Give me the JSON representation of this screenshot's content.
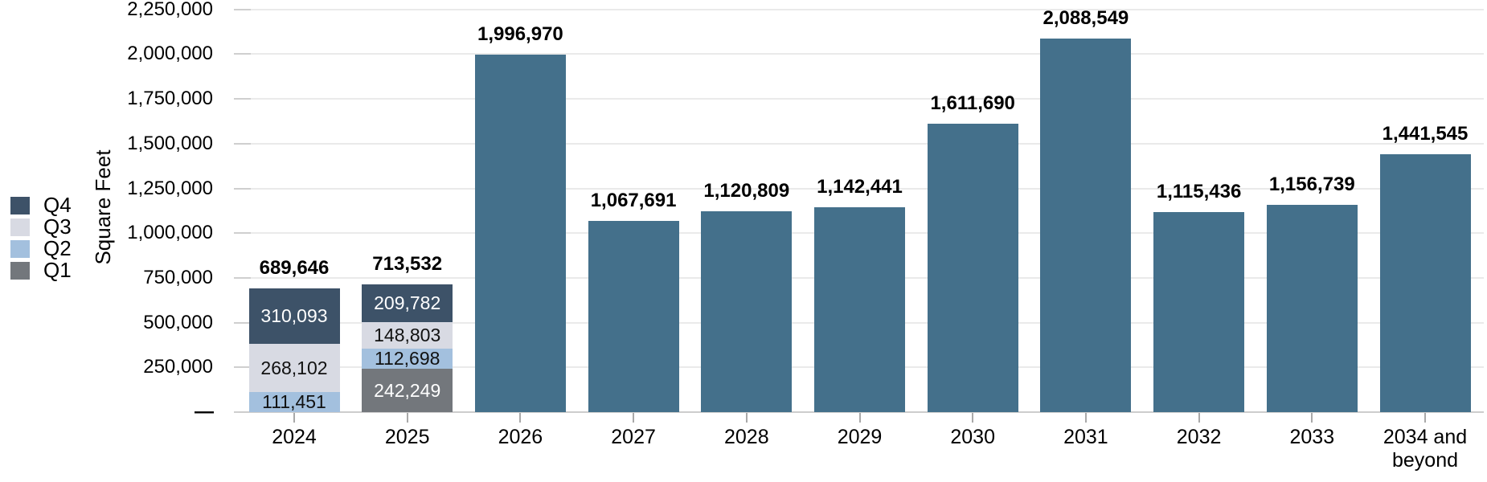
{
  "chart_data": {
    "type": "bar",
    "stacked": true,
    "title": "",
    "xlabel": "",
    "ylabel": "Square Feet",
    "ylim": [
      0,
      2250000
    ],
    "ytick_step": 250000,
    "grid": "horizontal",
    "legend_position": "left",
    "legend": [
      {
        "label": "Q4",
        "color": "#3D5268"
      },
      {
        "label": "Q3",
        "color": "#D8DAE3"
      },
      {
        "label": "Q2",
        "color": "#A3C0DE"
      },
      {
        "label": "Q1",
        "color": "#73777C"
      }
    ],
    "default_bar_color": "#44708B",
    "yticks": [
      {
        "value": 0,
        "label": "—"
      },
      {
        "value": 250000,
        "label": "250,000"
      },
      {
        "value": 500000,
        "label": "500,000"
      },
      {
        "value": 750000,
        "label": "750,000"
      },
      {
        "value": 1000000,
        "label": "1,000,000"
      },
      {
        "value": 1250000,
        "label": "1,250,000"
      },
      {
        "value": 1500000,
        "label": "1,500,000"
      },
      {
        "value": 1750000,
        "label": "1,750,000"
      },
      {
        "value": 2000000,
        "label": "2,000,000"
      },
      {
        "value": 2250000,
        "label": "2,250,000"
      }
    ],
    "categories": [
      "2024",
      "2025",
      "2026",
      "2027",
      "2028",
      "2029",
      "2030",
      "2031",
      "2032",
      "2033",
      "2034 and beyond"
    ],
    "stack_order": "bottom-to-top",
    "bars": [
      {
        "category": "2024",
        "total": 689646,
        "total_label": "689,646",
        "segments": [
          {
            "quarter": "Q2",
            "value": 111451,
            "label": "111,451",
            "color": "#A3C0DE",
            "text_color": "#111111"
          },
          {
            "quarter": "Q3",
            "value": 268102,
            "label": "268,102",
            "color": "#D8DAE3",
            "text_color": "#111111"
          },
          {
            "quarter": "Q4",
            "value": 310093,
            "label": "310,093",
            "color": "#3D5268",
            "text_color": "#FFFFFF"
          }
        ]
      },
      {
        "category": "2025",
        "total": 713532,
        "total_label": "713,532",
        "segments": [
          {
            "quarter": "Q1",
            "value": 242249,
            "label": "242,249",
            "color": "#73777C",
            "text_color": "#FFFFFF"
          },
          {
            "quarter": "Q2",
            "value": 112698,
            "label": "112,698",
            "color": "#A3C0DE",
            "text_color": "#111111"
          },
          {
            "quarter": "Q3",
            "value": 148803,
            "label": "148,803",
            "color": "#D8DAE3",
            "text_color": "#111111"
          },
          {
            "quarter": "Q4",
            "value": 209782,
            "label": "209,782",
            "color": "#3D5268",
            "text_color": "#FFFFFF"
          }
        ]
      },
      {
        "category": "2026",
        "total": 1996970,
        "total_label": "1,996,970",
        "segments": []
      },
      {
        "category": "2027",
        "total": 1067691,
        "total_label": "1,067,691",
        "segments": []
      },
      {
        "category": "2028",
        "total": 1120809,
        "total_label": "1,120,809",
        "segments": []
      },
      {
        "category": "2029",
        "total": 1142441,
        "total_label": "1,142,441",
        "segments": []
      },
      {
        "category": "2030",
        "total": 1611690,
        "total_label": "1,611,690",
        "segments": []
      },
      {
        "category": "2031",
        "total": 2088549,
        "total_label": "2,088,549",
        "segments": []
      },
      {
        "category": "2032",
        "total": 1115436,
        "total_label": "1,115,436",
        "segments": []
      },
      {
        "category": "2033",
        "total": 1156739,
        "total_label": "1,156,739",
        "segments": []
      },
      {
        "category": "2034 and beyond",
        "total": 1441545,
        "total_label": "1,441,545",
        "segments": []
      }
    ]
  }
}
